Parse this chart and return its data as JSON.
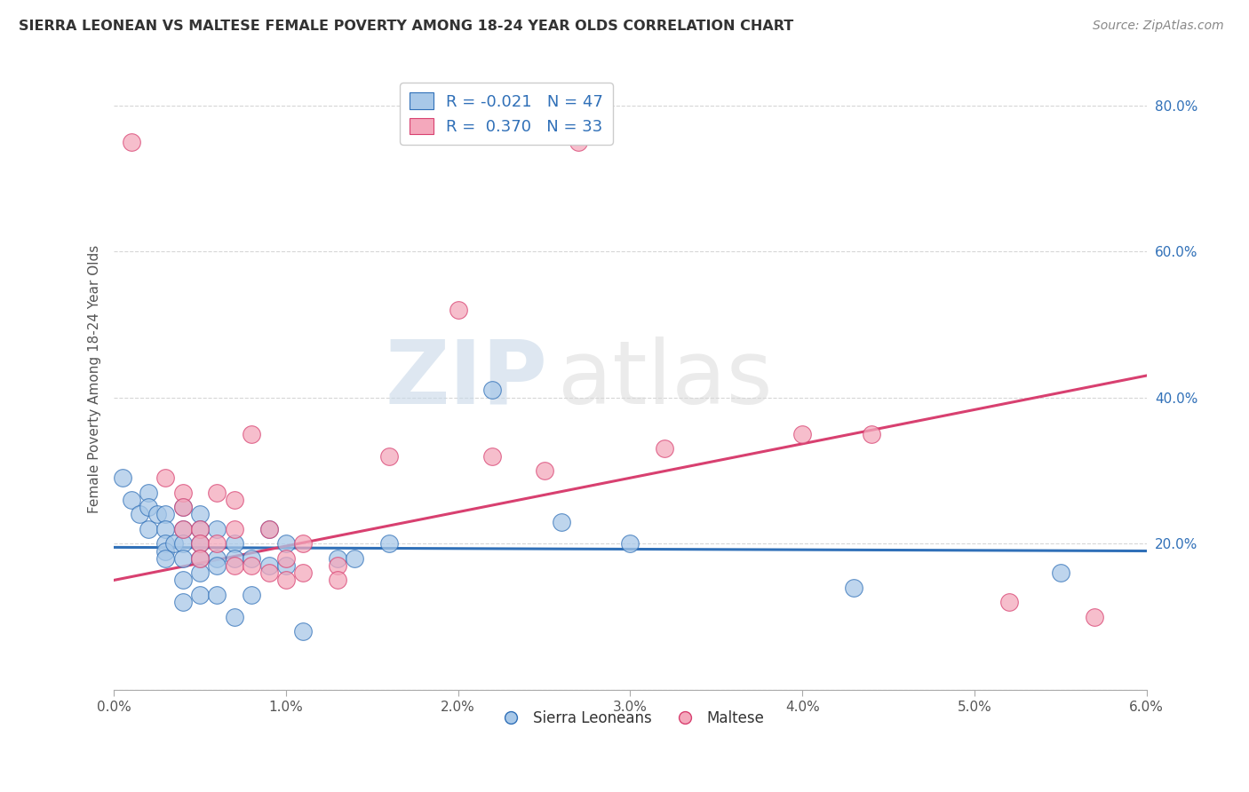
{
  "title": "SIERRA LEONEAN VS MALTESE FEMALE POVERTY AMONG 18-24 YEAR OLDS CORRELATION CHART",
  "source": "Source: ZipAtlas.com",
  "ylabel": "Female Poverty Among 18-24 Year Olds",
  "xlim": [
    0.0,
    0.06
  ],
  "ylim": [
    0.0,
    0.85
  ],
  "xticks": [
    0.0,
    0.01,
    0.02,
    0.03,
    0.04,
    0.05,
    0.06
  ],
  "xtick_labels": [
    "0.0%",
    "1.0%",
    "2.0%",
    "3.0%",
    "4.0%",
    "5.0%",
    "6.0%"
  ],
  "yticks": [
    0.0,
    0.2,
    0.4,
    0.6,
    0.8
  ],
  "ytick_labels": [
    "",
    "20.0%",
    "40.0%",
    "60.0%",
    "80.0%"
  ],
  "sierra_color": "#A8C8E8",
  "maltese_color": "#F4A8BC",
  "sierra_R": -0.021,
  "sierra_N": 47,
  "maltese_R": 0.37,
  "maltese_N": 33,
  "sierra_line_color": "#3070B8",
  "maltese_line_color": "#D84070",
  "watermark_zip": "ZIP",
  "watermark_atlas": "atlas",
  "sierra_x": [
    0.0005,
    0.001,
    0.0015,
    0.002,
    0.002,
    0.002,
    0.0025,
    0.003,
    0.003,
    0.003,
    0.003,
    0.003,
    0.0035,
    0.004,
    0.004,
    0.004,
    0.004,
    0.004,
    0.004,
    0.005,
    0.005,
    0.005,
    0.005,
    0.005,
    0.005,
    0.006,
    0.006,
    0.006,
    0.006,
    0.007,
    0.007,
    0.007,
    0.008,
    0.008,
    0.009,
    0.009,
    0.01,
    0.01,
    0.011,
    0.013,
    0.014,
    0.016,
    0.022,
    0.026,
    0.03,
    0.043,
    0.055
  ],
  "sierra_y": [
    0.29,
    0.26,
    0.24,
    0.27,
    0.25,
    0.22,
    0.24,
    0.24,
    0.22,
    0.2,
    0.19,
    0.18,
    0.2,
    0.25,
    0.22,
    0.2,
    0.18,
    0.15,
    0.12,
    0.24,
    0.22,
    0.2,
    0.18,
    0.16,
    0.13,
    0.22,
    0.18,
    0.17,
    0.13,
    0.2,
    0.18,
    0.1,
    0.18,
    0.13,
    0.22,
    0.17,
    0.2,
    0.17,
    0.08,
    0.18,
    0.18,
    0.2,
    0.41,
    0.23,
    0.2,
    0.14,
    0.16
  ],
  "maltese_x": [
    0.001,
    0.003,
    0.004,
    0.004,
    0.004,
    0.005,
    0.005,
    0.005,
    0.006,
    0.006,
    0.007,
    0.007,
    0.007,
    0.008,
    0.008,
    0.009,
    0.009,
    0.01,
    0.01,
    0.011,
    0.011,
    0.013,
    0.013,
    0.016,
    0.02,
    0.022,
    0.025,
    0.027,
    0.032,
    0.04,
    0.044,
    0.052,
    0.057
  ],
  "maltese_y": [
    0.75,
    0.29,
    0.27,
    0.25,
    0.22,
    0.22,
    0.2,
    0.18,
    0.27,
    0.2,
    0.26,
    0.22,
    0.17,
    0.35,
    0.17,
    0.22,
    0.16,
    0.18,
    0.15,
    0.2,
    0.16,
    0.17,
    0.15,
    0.32,
    0.52,
    0.32,
    0.3,
    0.75,
    0.33,
    0.35,
    0.35,
    0.12,
    0.1
  ],
  "sierra_trend_x": [
    0.0,
    0.06
  ],
  "sierra_trend_y": [
    0.195,
    0.19
  ],
  "maltese_trend_x": [
    0.0,
    0.06
  ],
  "maltese_trend_y": [
    0.15,
    0.43
  ]
}
